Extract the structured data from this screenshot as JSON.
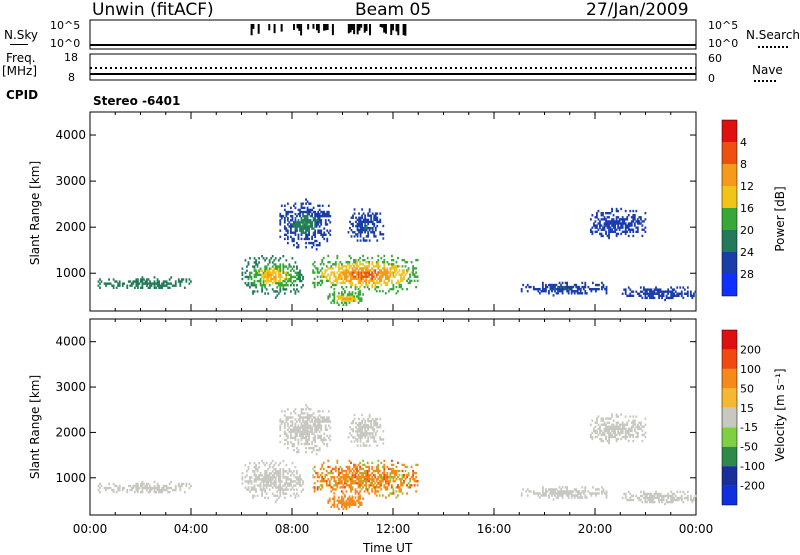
{
  "header": {
    "title_left": "Unwin (fitACF)",
    "title_center": "Beam 05",
    "title_right": "27/Jan/2009"
  },
  "strip": {
    "nsky_label": "N.Sky",
    "nsky_top": "10^5",
    "nsky_bottom": "10^0",
    "nsearch_label": "N.Search",
    "nsearch_top": "10^5",
    "nsearch_bottom": "10^0",
    "freq_label_1": "Freq.",
    "freq_label_2": "[MHz]",
    "freq_top": "18",
    "freq_bottom": "8",
    "nave_label": "Nave",
    "nave_top": "60",
    "nave_bottom": "0",
    "cpid_label": "CPID",
    "cpid_value": "Stereo -6401"
  },
  "colors": {
    "power": [
      "#1030ff",
      "#1a3da8",
      "#237a5a",
      "#37a838",
      "#f2c418",
      "#f59a1a",
      "#ee5010",
      "#e01010"
    ],
    "velocity": [
      "#e01010",
      "#f04a10",
      "#f58a1a",
      "#f5b830",
      "#c8c8c0",
      "#7fd040",
      "#2f8a4a",
      "#1a2f9a",
      "#1030e0"
    ],
    "ground": "#c8c8c0"
  },
  "chart_data": [
    {
      "type": "heatmap",
      "name": "power",
      "ylabel": "Slant Range [km]",
      "yticks": [
        "4000",
        "3000",
        "2000",
        "1000"
      ],
      "ylim": [
        180,
        4500
      ],
      "xlim": [
        0,
        24
      ],
      "colorbar_label": "Power [dB]",
      "colorbar_ticks": [
        "28",
        "24",
        "20",
        "16",
        "12",
        "8",
        "4"
      ],
      "colorbar_range": [
        0,
        32
      ]
    },
    {
      "type": "heatmap",
      "name": "velocity",
      "ylabel": "Slant Range [km]",
      "yticks": [
        "4000",
        "3000",
        "2000",
        "1000"
      ],
      "ylim": [
        180,
        4500
      ],
      "xlim": [
        0,
        24
      ],
      "xlabel": "Time UT",
      "xticks": [
        "00:00",
        "04:00",
        "08:00",
        "12:00",
        "16:00",
        "20:00",
        "00:00"
      ],
      "colorbar_label": "Velocity [m s⁻¹]",
      "colorbar_ticks": [
        "200",
        "100",
        "50",
        "15",
        "-15",
        "-50",
        "-100",
        "-200"
      ]
    }
  ]
}
